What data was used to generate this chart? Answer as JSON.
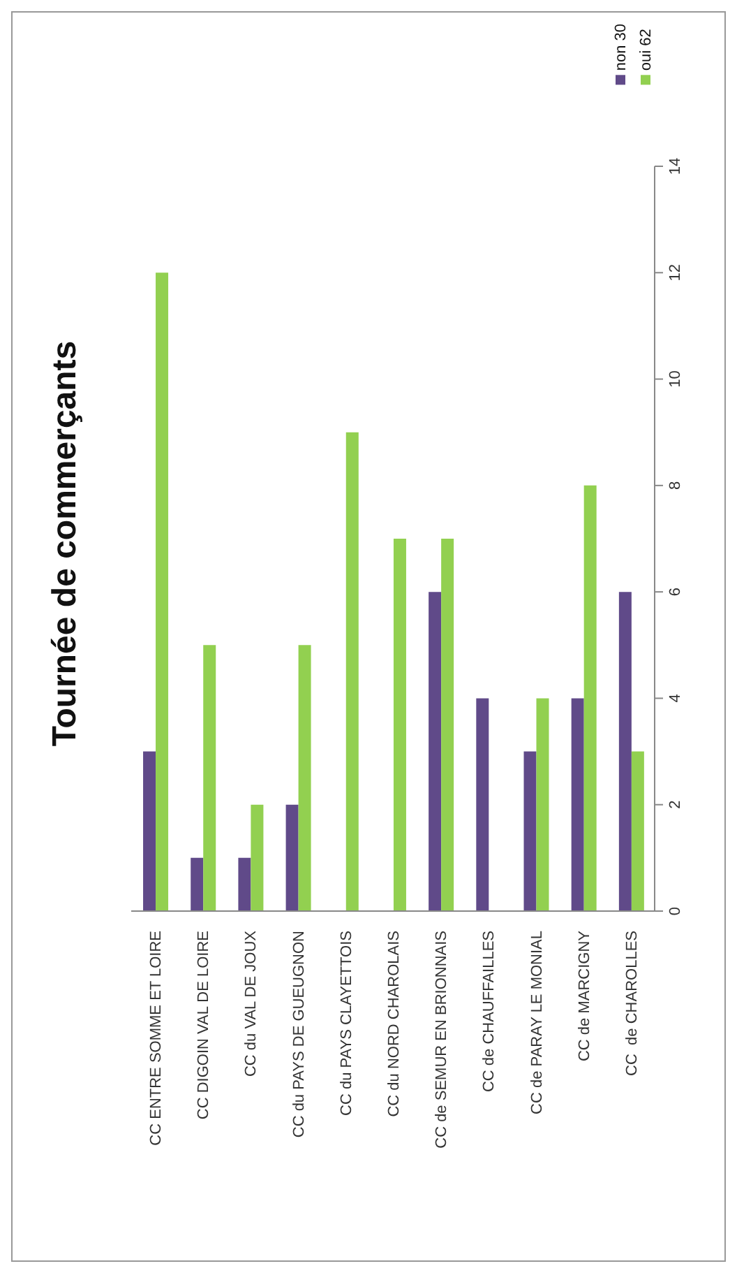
{
  "chart_data": {
    "type": "bar",
    "title": "Tournée de commerçants",
    "categories": [
      "CC ENTRE SOMME ET LOIRE",
      "CC DIGOIN VAL DE LOIRE",
      "CC du VAL DE JOUX",
      "CC du PAYS DE GUEUGNON",
      "CC du PAYS CLAYETTOIS",
      "CC du NORD CHAROLAIS",
      "CC de SEMUR EN BRIONNAIS",
      "CC de CHAUFFAILLES",
      "CC de PARAY LE MONIAL",
      "CC de MARCIGNY",
      "CC  de CHAROLLES"
    ],
    "series": [
      {
        "name": "non 30",
        "color": "#604a89",
        "values": [
          3,
          1,
          1,
          2,
          0,
          0,
          6,
          4,
          3,
          4,
          6
        ]
      },
      {
        "name": "oui 62",
        "color": "#92d050",
        "values": [
          12,
          5,
          2,
          5,
          9,
          7,
          7,
          0,
          4,
          8,
          3
        ]
      }
    ],
    "ylim": [
      0,
      14
    ],
    "yticks": [
      0,
      2,
      4,
      6,
      8,
      10,
      12,
      14
    ],
    "grid": false,
    "legend": "top right"
  }
}
